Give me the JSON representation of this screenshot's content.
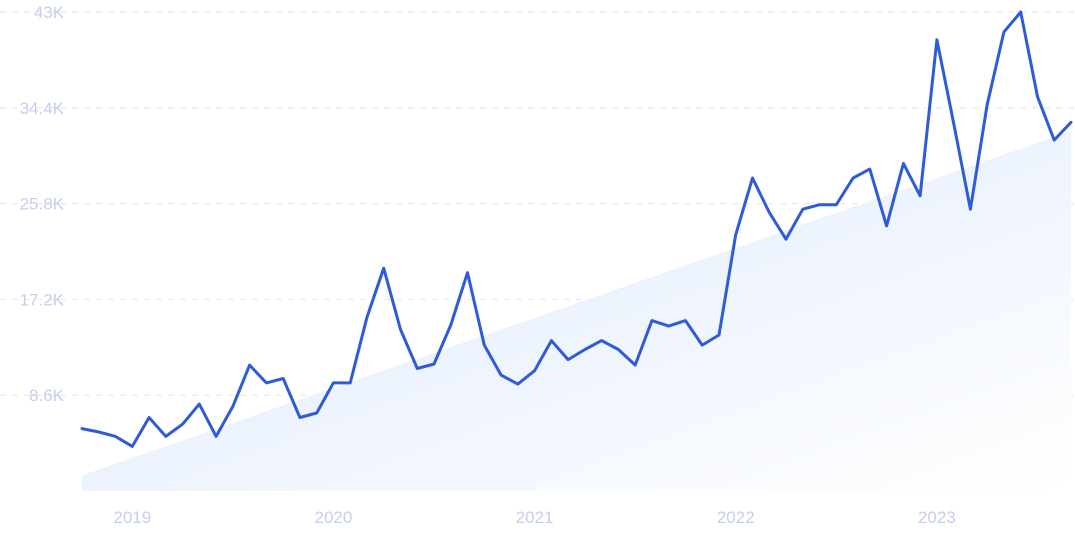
{
  "chart_data": {
    "type": "line",
    "title": "",
    "xlabel": "",
    "ylabel": "",
    "ylim": [
      0,
      43000
    ],
    "y_ticks": [
      {
        "value": 8600,
        "label": "8.6K"
      },
      {
        "value": 17200,
        "label": "17.2K"
      },
      {
        "value": 25800,
        "label": "25.8K"
      },
      {
        "value": 34400,
        "label": "34.4K"
      },
      {
        "value": 43000,
        "label": "43K"
      }
    ],
    "x_ticks": [
      {
        "value": "2019-01",
        "label": "2019"
      },
      {
        "value": "2020-01",
        "label": "2020"
      },
      {
        "value": "2021-01",
        "label": "2021"
      },
      {
        "value": "2022-01",
        "label": "2022"
      },
      {
        "value": "2023-01",
        "label": "2023"
      }
    ],
    "grid": true,
    "legend": "none",
    "series": [
      {
        "type": "line",
        "color": "#2f5bd8",
        "points": [
          [
            "2018-10",
            5600
          ],
          [
            "2018-11",
            5300
          ],
          [
            "2018-12",
            4900
          ],
          [
            "2019-01",
            4000
          ],
          [
            "2019-02",
            6600
          ],
          [
            "2019-03",
            4900
          ],
          [
            "2019-04",
            6000
          ],
          [
            "2019-05",
            7800
          ],
          [
            "2019-06",
            4900
          ],
          [
            "2019-07",
            7600
          ],
          [
            "2019-08",
            11300
          ],
          [
            "2019-09",
            9700
          ],
          [
            "2019-10",
            10100
          ],
          [
            "2019-11",
            6600
          ],
          [
            "2019-12",
            7000
          ],
          [
            "2020-01",
            9700
          ],
          [
            "2020-02",
            9700
          ],
          [
            "2020-03",
            15600
          ],
          [
            "2020-04",
            20000
          ],
          [
            "2020-05",
            14500
          ],
          [
            "2020-06",
            11000
          ],
          [
            "2020-07",
            11400
          ],
          [
            "2020-08",
            14900
          ],
          [
            "2020-09",
            19600
          ],
          [
            "2020-10",
            13100
          ],
          [
            "2020-11",
            10400
          ],
          [
            "2020-12",
            9600
          ],
          [
            "2021-01",
            10800
          ],
          [
            "2021-02",
            13500
          ],
          [
            "2021-03",
            11800
          ],
          [
            "2021-04",
            12700
          ],
          [
            "2021-05",
            13500
          ],
          [
            "2021-06",
            12700
          ],
          [
            "2021-07",
            11300
          ],
          [
            "2021-08",
            15300
          ],
          [
            "2021-09",
            14800
          ],
          [
            "2021-10",
            15300
          ],
          [
            "2021-11",
            13100
          ],
          [
            "2021-12",
            14000
          ],
          [
            "2022-01",
            23000
          ],
          [
            "2022-02",
            28100
          ],
          [
            "2022-03",
            25000
          ],
          [
            "2022-04",
            22600
          ],
          [
            "2022-05",
            25300
          ],
          [
            "2022-06",
            25700
          ],
          [
            "2022-07",
            25700
          ],
          [
            "2022-08",
            28100
          ],
          [
            "2022-09",
            28900
          ],
          [
            "2022-10",
            23800
          ],
          [
            "2022-11",
            29400
          ],
          [
            "2022-12",
            26500
          ],
          [
            "2023-01",
            40500
          ],
          [
            "2023-02",
            33000
          ],
          [
            "2023-03",
            25300
          ],
          [
            "2023-04",
            34700
          ],
          [
            "2023-05",
            41200
          ],
          [
            "2023-06",
            43000
          ],
          [
            "2023-07",
            35400
          ],
          [
            "2023-08",
            31500
          ],
          [
            "2023-09",
            33100
          ]
        ]
      },
      {
        "type": "area",
        "color": "#dce8fb",
        "points": [
          [
            "2018-10",
            1400
          ],
          [
            "2023-09",
            32300
          ]
        ]
      }
    ]
  }
}
